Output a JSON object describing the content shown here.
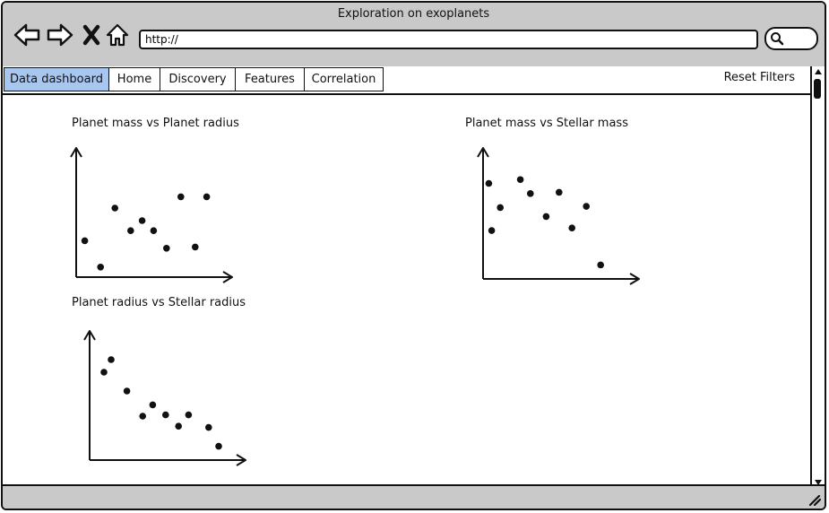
{
  "window": {
    "title": "Exploration on exoplanets",
    "url": "http://"
  },
  "tabs": [
    {
      "label": "Data dashboard",
      "active": true
    },
    {
      "label": "Home",
      "active": false
    },
    {
      "label": "Discovery",
      "active": false
    },
    {
      "label": "Features",
      "active": false
    },
    {
      "label": "Correlation",
      "active": false
    }
  ],
  "reset_filters_label": "Reset Filters",
  "icons": [
    "back-arrow-icon",
    "forward-arrow-icon",
    "close-icon",
    "home-icon",
    "search-icon"
  ],
  "colors": {
    "chrome": "#c9c9c9",
    "active_tab": "#a9c6ee",
    "ink": "#111111"
  },
  "chart_data": [
    {
      "type": "scatter",
      "title": "Planet mass vs Planet radius",
      "xlabel": "",
      "ylabel": "",
      "xlim": [
        0,
        100
      ],
      "ylim": [
        0,
        100
      ],
      "points": [
        {
          "x": 6,
          "y": 29
        },
        {
          "x": 17,
          "y": 8
        },
        {
          "x": 27,
          "y": 55
        },
        {
          "x": 38,
          "y": 37
        },
        {
          "x": 46,
          "y": 45
        },
        {
          "x": 54,
          "y": 37
        },
        {
          "x": 63,
          "y": 23
        },
        {
          "x": 73,
          "y": 64
        },
        {
          "x": 83,
          "y": 24
        },
        {
          "x": 91,
          "y": 64
        }
      ]
    },
    {
      "type": "scatter",
      "title": "Planet mass vs Stellar mass",
      "xlabel": "",
      "ylabel": "",
      "xlim": [
        0,
        100
      ],
      "ylim": [
        0,
        100
      ],
      "points": [
        {
          "x": 4,
          "y": 75
        },
        {
          "x": 6,
          "y": 38
        },
        {
          "x": 12,
          "y": 56
        },
        {
          "x": 26,
          "y": 78
        },
        {
          "x": 33,
          "y": 67
        },
        {
          "x": 44,
          "y": 49
        },
        {
          "x": 53,
          "y": 68
        },
        {
          "x": 62,
          "y": 40
        },
        {
          "x": 72,
          "y": 57
        },
        {
          "x": 82,
          "y": 11
        }
      ]
    },
    {
      "type": "scatter",
      "title": "Planet radius vs Stellar radius",
      "xlabel": "",
      "ylabel": "",
      "xlim": [
        0,
        100
      ],
      "ylim": [
        0,
        100
      ],
      "points": [
        {
          "x": 10,
          "y": 70
        },
        {
          "x": 15,
          "y": 80
        },
        {
          "x": 26,
          "y": 55
        },
        {
          "x": 37,
          "y": 35
        },
        {
          "x": 44,
          "y": 44
        },
        {
          "x": 53,
          "y": 36
        },
        {
          "x": 62,
          "y": 27
        },
        {
          "x": 69,
          "y": 36
        },
        {
          "x": 83,
          "y": 26
        },
        {
          "x": 90,
          "y": 11
        }
      ]
    }
  ]
}
